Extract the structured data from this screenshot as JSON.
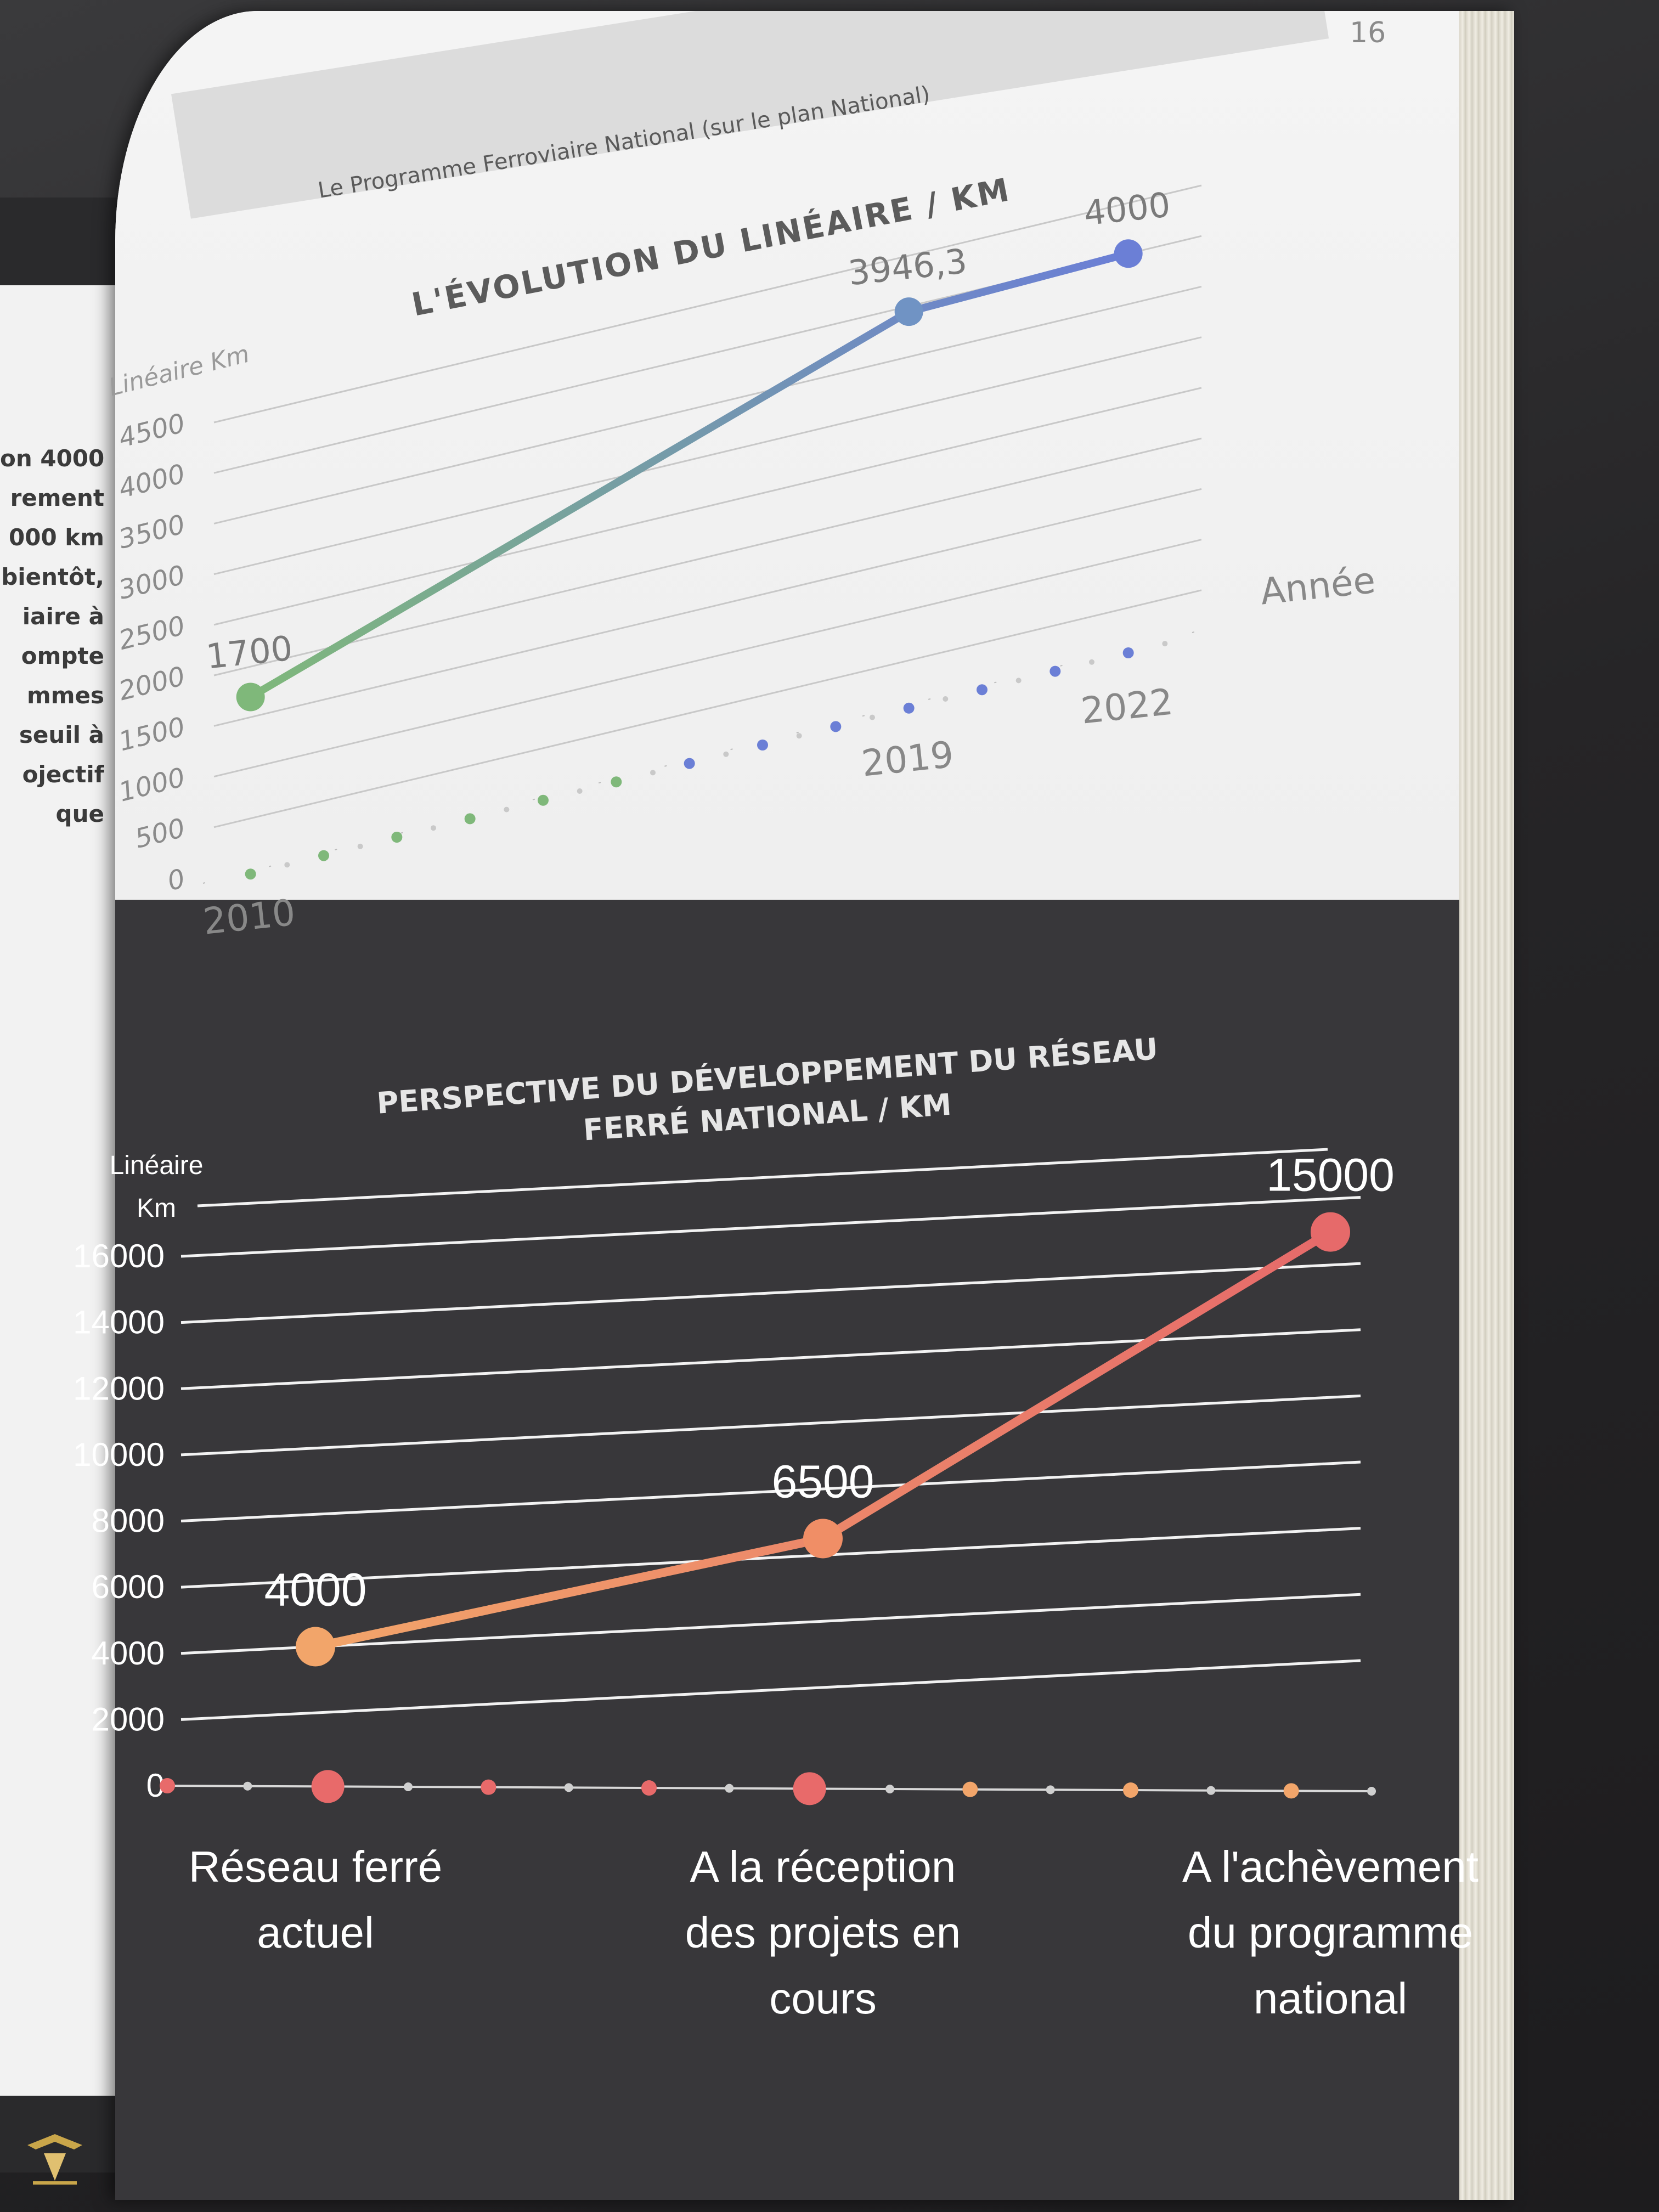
{
  "page": {
    "number": "16",
    "header": "Le Programme Ferroviaire National (sur le plan National)"
  },
  "left_page": {
    "lines": [
      "on 4000",
      "rement",
      "000 km",
      "bientôt,",
      "iaire à",
      "ompte",
      "mmes",
      "seuil à",
      "ojectif",
      "que"
    ]
  },
  "colors": {
    "chart1_start": "#7fb87a",
    "chart1_end": "#6b7fd6",
    "chart2_start": "#f2a56a",
    "chart2_end": "#e66a6a",
    "dark_panel": "#38373a"
  },
  "chart_data": [
    {
      "type": "line",
      "title": "L'ÉVOLUTION DU LINÉAIRE / KM",
      "ylabel": "Linéaire Km",
      "xlabel": "Année",
      "ylim": [
        0,
        4500
      ],
      "yticks": [
        "0",
        "500",
        "1000",
        "1500",
        "2000",
        "2500",
        "3000",
        "3500",
        "4000",
        "4500"
      ],
      "x_labels": [
        "2010",
        "2019",
        "2022"
      ],
      "x": [
        2010,
        2019,
        2022
      ],
      "values": [
        1700,
        3946.3,
        4000
      ],
      "value_labels": [
        "1700",
        "3946,3",
        "4000"
      ],
      "grid": true
    },
    {
      "type": "line",
      "title_lines": [
        "PERSPECTIVE DU DÉVELOPPEMENT DU RÉSEAU",
        "FERRÉ NATIONAL / KM"
      ],
      "ylabel_lines": [
        "Linéaire",
        "Km"
      ],
      "ylim": [
        0,
        16000
      ],
      "yticks": [
        "0",
        "2000",
        "4000",
        "6000",
        "8000",
        "10000",
        "12000",
        "14000",
        "16000"
      ],
      "categories": [
        [
          "Réseau ferré",
          "actuel"
        ],
        [
          "A la réception",
          "des projets en",
          "cours"
        ],
        [
          "A l'achèvement",
          "du programme",
          "national"
        ]
      ],
      "values": [
        4000,
        6500,
        15000
      ],
      "value_labels": [
        "4000",
        "6500",
        "15000"
      ],
      "grid": true
    }
  ]
}
